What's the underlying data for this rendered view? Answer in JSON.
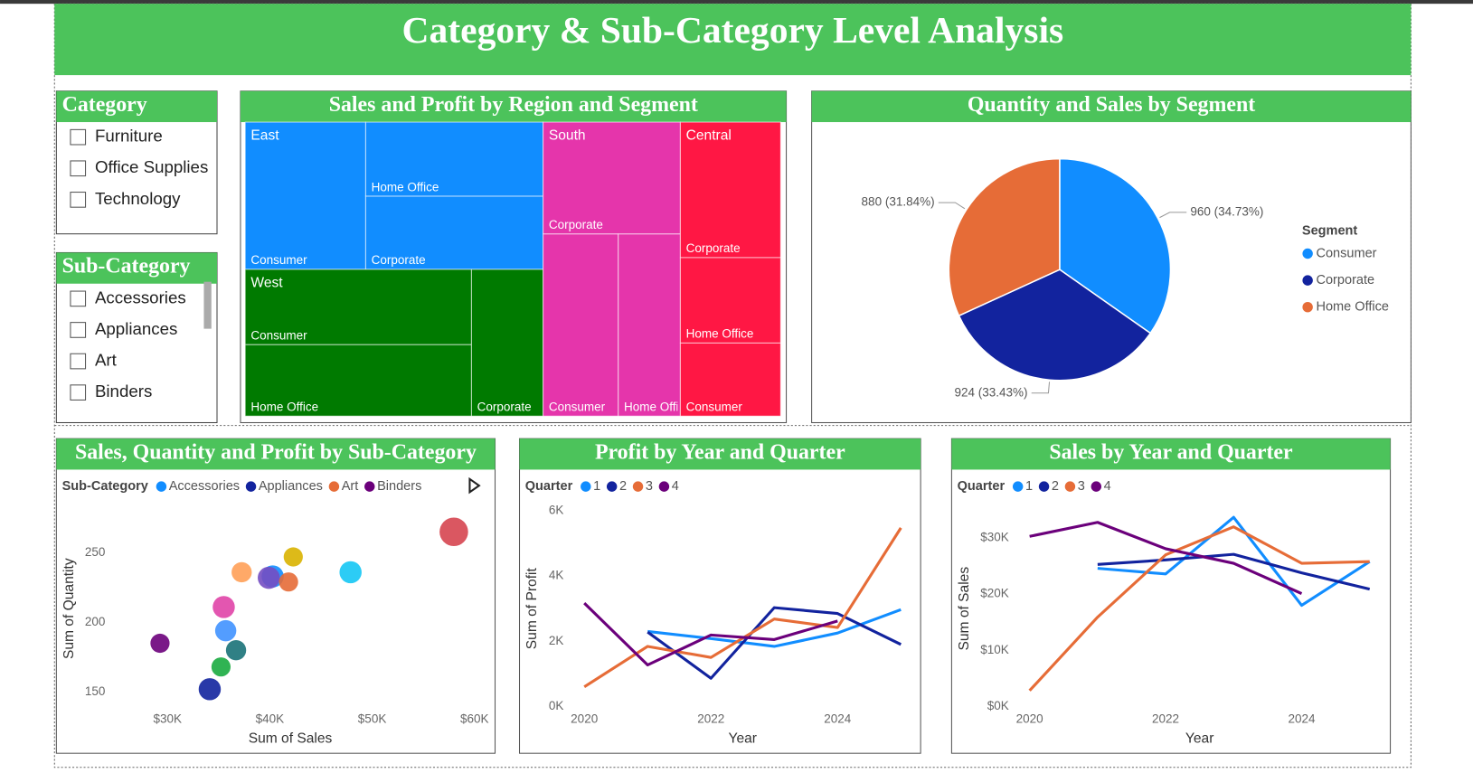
{
  "header": {
    "title": "Category & Sub-Category Level Analysis"
  },
  "slicers": [
    {
      "title": "Category",
      "items": [
        "Furniture",
        "Office Supplies",
        "Technology"
      ]
    },
    {
      "title": "Sub-Category",
      "items": [
        "Accessories",
        "Appliances",
        "Art",
        "Binders"
      ]
    }
  ],
  "chart_data": [
    {
      "type": "treemap",
      "title": "Sales and Profit by Region and Segment",
      "groups": [
        {
          "name": "East",
          "color": "#118dff",
          "categories": [
            "Consumer",
            "Home Office",
            "Corporate"
          ],
          "values": [
            201,
            149,
            147
          ]
        },
        {
          "name": "West",
          "color": "#007a00",
          "categories": [
            "Consumer",
            "Home Office",
            "Corporate"
          ],
          "values": [
            193,
            183,
            119
          ]
        },
        {
          "name": "South",
          "color": "#e535ab",
          "categories": [
            "Corporate",
            "Consumer",
            "Home Office"
          ],
          "values": [
            174,
            155,
            128
          ]
        },
        {
          "name": "Central",
          "color": "#ff1744",
          "categories": [
            "Corporate",
            "Home Office",
            "Consumer"
          ],
          "values": [
            154,
            97,
            83
          ]
        }
      ]
    },
    {
      "type": "pie",
      "title": "Quantity and Sales by Segment",
      "legend_title": "Segment",
      "categories": [
        "Consumer",
        "Corporate",
        "Home Office"
      ],
      "values": [
        960,
        924,
        880
      ],
      "value_labels": [
        "960 (34.73%)",
        "924 (33.43%)",
        "880 (31.84%)"
      ],
      "colors": [
        "#118dff",
        "#12239e",
        "#e66c37"
      ]
    },
    {
      "type": "scatter",
      "title": "Sales, Quantity and Profit by Sub-Category",
      "legend_title": "Sub-Category",
      "legend": [
        {
          "name": "Accessories",
          "color": "#118dff"
        },
        {
          "name": "Appliances",
          "color": "#12239e"
        },
        {
          "name": "Art",
          "color": "#e66c37"
        },
        {
          "name": "Binders",
          "color": "#6b007b"
        }
      ],
      "x_label": "Sum of Sales",
      "y_label": "Sum of Quantity",
      "x": [
        29270,
        34130,
        35230,
        36700,
        35690,
        35500,
        37250,
        40280,
        39900,
        41830,
        42290,
        47890,
        57980
      ],
      "y": [
        185,
        152,
        168,
        180,
        194,
        211,
        236,
        233,
        232,
        229,
        247,
        236,
        265
      ],
      "size": [
        9,
        12,
        9,
        10,
        11,
        12,
        10,
        12,
        12,
        9,
        9,
        12,
        20
      ],
      "colors": [
        "#6b007b",
        "#12239e",
        "#1aab40",
        "#197278",
        "#4092ff",
        "#e044a7",
        "#ffa058",
        "#118dff",
        "#744ec2",
        "#e66c37",
        "#d9b300",
        "#15c6f4",
        "#d64550"
      ],
      "xlim": [
        23000,
        61000
      ],
      "xticks": [
        {
          "value": 30000,
          "label": "$30K"
        },
        {
          "value": 40000,
          "label": "$40K"
        },
        {
          "value": 50000,
          "label": "$50K"
        },
        {
          "value": 60000,
          "label": "$60K"
        }
      ],
      "ylim": [
        135,
        280
      ],
      "yticks": [
        150,
        200,
        250
      ]
    },
    {
      "type": "line",
      "title": "Profit by Year and Quarter",
      "legend_title": "Quarter",
      "x_label": "Year",
      "y_label": "Sum of Profit",
      "x": [
        2020,
        2021,
        2022,
        2023,
        2024,
        2025
      ],
      "xlim": [
        2020,
        2025
      ],
      "xticks": [
        2020,
        2022,
        2024
      ],
      "ylim": [
        0,
        6000
      ],
      "yticks": [
        {
          "value": 0,
          "label": "0K"
        },
        {
          "value": 2000,
          "label": "2K"
        },
        {
          "value": 4000,
          "label": "4K"
        },
        {
          "value": 6000,
          "label": "6K"
        }
      ],
      "series": [
        {
          "name": "1",
          "color": "#118dff",
          "values": [
            null,
            2300,
            2080,
            1840,
            2250,
            2970
          ]
        },
        {
          "name": "2",
          "color": "#12239e",
          "values": [
            null,
            2280,
            860,
            3030,
            2850,
            1900
          ]
        },
        {
          "name": "3",
          "color": "#e66c37",
          "values": [
            600,
            1840,
            1500,
            2680,
            2420,
            5480
          ]
        },
        {
          "name": "4",
          "color": "#6b007b",
          "values": [
            3170,
            1270,
            2190,
            2050,
            2620,
            null
          ]
        }
      ]
    },
    {
      "type": "line",
      "title": "Sales by Year and Quarter",
      "legend_title": "Quarter",
      "x_label": "Year",
      "y_label": "Sum of Sales",
      "x": [
        2020,
        2021,
        2022,
        2023,
        2024,
        2025
      ],
      "xlim": [
        2020,
        2025
      ],
      "xticks": [
        2020,
        2022,
        2024
      ],
      "ylim": [
        0,
        35000
      ],
      "yticks": [
        {
          "value": 0,
          "label": "$0K"
        },
        {
          "value": 10000,
          "label": "$10K"
        },
        {
          "value": 20000,
          "label": "$20K"
        },
        {
          "value": 30000,
          "label": "$30K"
        }
      ],
      "series": [
        {
          "name": "1",
          "color": "#118dff",
          "values": [
            null,
            24600,
            23600,
            33700,
            18000,
            25800
          ]
        },
        {
          "name": "2",
          "color": "#12239e",
          "values": [
            null,
            25300,
            26100,
            27100,
            23800,
            20900
          ]
        },
        {
          "name": "3",
          "color": "#e66c37",
          "values": [
            2800,
            15900,
            27000,
            32000,
            25500,
            25800
          ]
        },
        {
          "name": "4",
          "color": "#6b007b",
          "values": [
            30300,
            32800,
            28100,
            25500,
            20100,
            null
          ]
        }
      ]
    }
  ]
}
